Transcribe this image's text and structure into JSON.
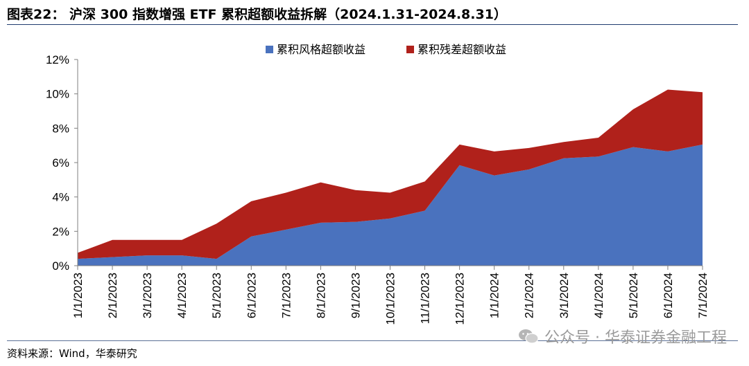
{
  "title": "图表22： 沪深 300 指数增强 ETF 累积超额收益拆解（2024.1.31-2024.8.31）",
  "source": "资料来源：Wind，华泰研究",
  "watermark": "公众号 · 华泰证券金融工程",
  "colors": {
    "style": "#4a72be",
    "residual": "#b0211b",
    "title_rule": "#1f3a6e"
  },
  "chart_data": {
    "type": "area",
    "stacked": true,
    "categories": [
      "1/1/2023",
      "2/1/2023",
      "3/1/2023",
      "4/1/2023",
      "5/1/2023",
      "6/1/2023",
      "7/1/2023",
      "8/1/2023",
      "9/1/2023",
      "10/1/2023",
      "11/1/2023",
      "12/1/2023",
      "1/1/2024",
      "2/1/2024",
      "3/1/2024",
      "4/1/2024",
      "5/1/2024",
      "6/1/2024",
      "7/1/2024"
    ],
    "series": [
      {
        "name": "累积风格超额收益",
        "color": "#4a72be",
        "values": [
          0.4,
          0.5,
          0.6,
          0.6,
          0.4,
          1.7,
          2.1,
          2.5,
          2.55,
          2.75,
          3.2,
          5.85,
          5.25,
          5.6,
          6.25,
          6.35,
          6.9,
          6.65,
          7.05
        ]
      },
      {
        "name": "累积残差超额收益",
        "color": "#b0211b",
        "values": [
          0.35,
          1.0,
          0.9,
          0.9,
          2.05,
          2.05,
          2.15,
          2.35,
          1.85,
          1.5,
          1.7,
          1.2,
          1.4,
          1.25,
          0.95,
          1.1,
          2.2,
          3.6,
          3.05
        ]
      }
    ],
    "yticks": [
      "0%",
      "2%",
      "4%",
      "6%",
      "8%",
      "10%",
      "12%"
    ],
    "ylim": [
      0,
      12
    ],
    "legend_position": "top",
    "grid": false
  }
}
